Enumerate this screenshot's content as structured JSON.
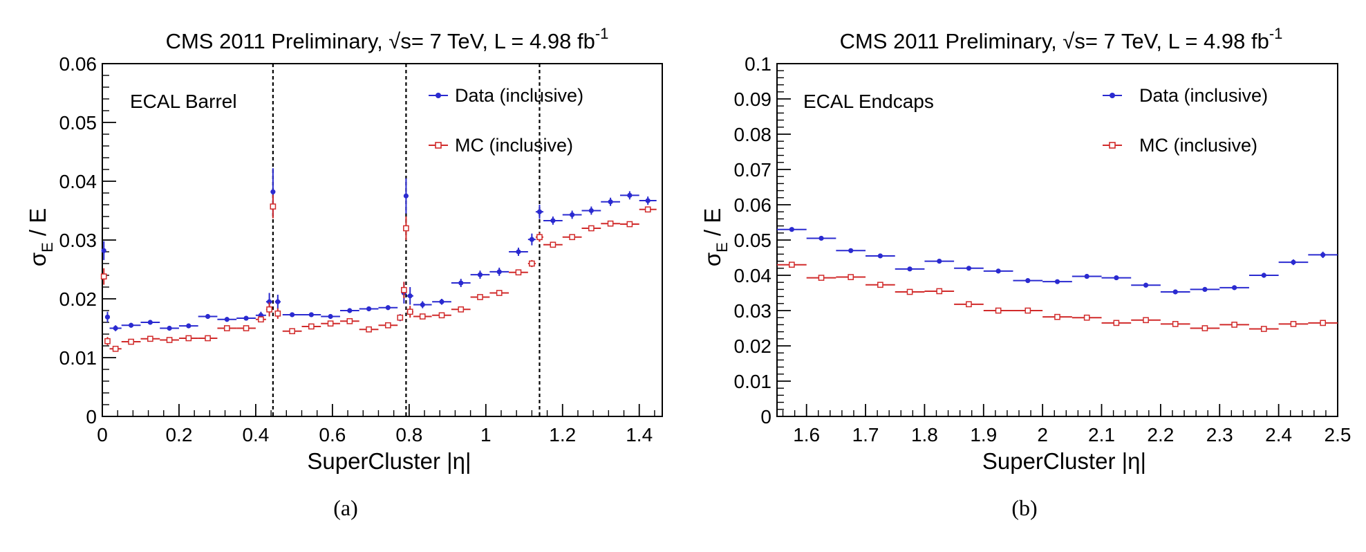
{
  "chart_data": [
    {
      "type": "scatter",
      "panel_caption": "(a)",
      "title": "CMS 2011 Preliminary, √s= 7 TeV, L = 4.98 fb",
      "title_superscript": "-1",
      "region_label": "ECAL Barrel",
      "xlabel": "SuperCluster |η|",
      "ylabel_main": "σ",
      "ylabel_sub": "E",
      "ylabel_rest": " / E",
      "xlim": [
        0,
        1.46
      ],
      "ylim": [
        0,
        0.06
      ],
      "xticks": [
        0,
        0.2,
        0.4,
        0.6,
        0.8,
        1,
        1.2,
        1.4
      ],
      "xtick_labels": [
        "0",
        "0.2",
        "0.4",
        "0.6",
        "0.8",
        "1",
        "1.2",
        "1.4"
      ],
      "yticks": [
        0,
        0.01,
        0.02,
        0.03,
        0.04,
        0.05,
        0.06
      ],
      "ytick_labels": [
        "0",
        "0.01",
        "0.02",
        "0.03",
        "0.04",
        "0.05",
        "0.06"
      ],
      "vlines": [
        0.445,
        0.792,
        1.14
      ],
      "legend_position": "top-right",
      "series": [
        {
          "name": "Data (inclusive)",
          "color": "#2a2ad0",
          "marker": "filled-circle",
          "points": [
            {
              "x": 0.004,
              "xw": 0.004,
              "y": 0.0282,
              "e": 0.0016
            },
            {
              "x": 0.0135,
              "xw": 0.0055,
              "y": 0.0169,
              "e": 0.0009
            },
            {
              "x": 0.0345,
              "xw": 0.0155,
              "y": 0.015,
              "e": 0.0005
            },
            {
              "x": 0.075,
              "xw": 0.025,
              "y": 0.0155,
              "e": 0.0004
            },
            {
              "x": 0.125,
              "xw": 0.025,
              "y": 0.016,
              "e": 0.0004
            },
            {
              "x": 0.175,
              "xw": 0.025,
              "y": 0.015,
              "e": 0.0004
            },
            {
              "x": 0.225,
              "xw": 0.025,
              "y": 0.0154,
              "e": 0.0004
            },
            {
              "x": 0.275,
              "xw": 0.025,
              "y": 0.017,
              "e": 0.0004
            },
            {
              "x": 0.325,
              "xw": 0.025,
              "y": 0.0165,
              "e": 0.0004
            },
            {
              "x": 0.375,
              "xw": 0.025,
              "y": 0.0167,
              "e": 0.0004
            },
            {
              "x": 0.4135,
              "xw": 0.0135,
              "y": 0.0172,
              "e": 0.0006
            },
            {
              "x": 0.4355,
              "xw": 0.0085,
              "y": 0.0195,
              "e": 0.0015
            },
            {
              "x": 0.445,
              "xw": 0.0035,
              "y": 0.0382,
              "e": 0.004
            },
            {
              "x": 0.4575,
              "xw": 0.0075,
              "y": 0.0195,
              "e": 0.0012
            },
            {
              "x": 0.495,
              "xw": 0.025,
              "y": 0.0173,
              "e": 0.0004
            },
            {
              "x": 0.545,
              "xw": 0.025,
              "y": 0.0173,
              "e": 0.0004
            },
            {
              "x": 0.595,
              "xw": 0.025,
              "y": 0.017,
              "e": 0.0004
            },
            {
              "x": 0.645,
              "xw": 0.025,
              "y": 0.018,
              "e": 0.0004
            },
            {
              "x": 0.695,
              "xw": 0.025,
              "y": 0.0183,
              "e": 0.0004
            },
            {
              "x": 0.745,
              "xw": 0.025,
              "y": 0.0185,
              "e": 0.0004
            },
            {
              "x": 0.7765,
              "xw": 0.0065,
              "y": 0.0168,
              "e": 0.0006
            },
            {
              "x": 0.7865,
              "xw": 0.0035,
              "y": 0.021,
              "e": 0.0018
            },
            {
              "x": 0.792,
              "xw": 0.002,
              "y": 0.0375,
              "e": 0.003
            },
            {
              "x": 0.8025,
              "xw": 0.0085,
              "y": 0.0205,
              "e": 0.0015
            },
            {
              "x": 0.835,
              "xw": 0.024,
              "y": 0.019,
              "e": 0.0006
            },
            {
              "x": 0.885,
              "xw": 0.025,
              "y": 0.0195,
              "e": 0.0005
            },
            {
              "x": 0.935,
              "xw": 0.025,
              "y": 0.0227,
              "e": 0.0007
            },
            {
              "x": 0.985,
              "xw": 0.025,
              "y": 0.0241,
              "e": 0.0007
            },
            {
              "x": 1.035,
              "xw": 0.025,
              "y": 0.0246,
              "e": 0.0007
            },
            {
              "x": 1.085,
              "xw": 0.025,
              "y": 0.028,
              "e": 0.0007
            },
            {
              "x": 1.12,
              "xw": 0.01,
              "y": 0.0301,
              "e": 0.001
            },
            {
              "x": 1.14,
              "xw": 0.01,
              "y": 0.0348,
              "e": 0.0012
            },
            {
              "x": 1.175,
              "xw": 0.025,
              "y": 0.0333,
              "e": 0.0007
            },
            {
              "x": 1.225,
              "xw": 0.025,
              "y": 0.0343,
              "e": 0.0007
            },
            {
              "x": 1.275,
              "xw": 0.025,
              "y": 0.035,
              "e": 0.0007
            },
            {
              "x": 1.325,
              "xw": 0.025,
              "y": 0.0365,
              "e": 0.0007
            },
            {
              "x": 1.375,
              "xw": 0.025,
              "y": 0.0376,
              "e": 0.0007
            },
            {
              "x": 1.4225,
              "xw": 0.0225,
              "y": 0.0367,
              "e": 0.0007
            }
          ]
        },
        {
          "name": "MC (inclusive)",
          "color": "#d12a2a",
          "marker": "open-square",
          "points": [
            {
              "x": 0.004,
              "xw": 0.004,
              "y": 0.0238,
              "e": 0.0014
            },
            {
              "x": 0.0135,
              "xw": 0.0055,
              "y": 0.0128,
              "e": 0.0007
            },
            {
              "x": 0.0345,
              "xw": 0.0155,
              "y": 0.0115,
              "e": 0.0004
            },
            {
              "x": 0.075,
              "xw": 0.025,
              "y": 0.0127,
              "e": 0.0003
            },
            {
              "x": 0.125,
              "xw": 0.025,
              "y": 0.0132,
              "e": 0.0003
            },
            {
              "x": 0.175,
              "xw": 0.025,
              "y": 0.013,
              "e": 0.0003
            },
            {
              "x": 0.225,
              "xw": 0.025,
              "y": 0.0133,
              "e": 0.0003
            },
            {
              "x": 0.275,
              "xw": 0.025,
              "y": 0.0133,
              "e": 0.0003
            },
            {
              "x": 0.325,
              "xw": 0.025,
              "y": 0.015,
              "e": 0.0003
            },
            {
              "x": 0.375,
              "xw": 0.025,
              "y": 0.015,
              "e": 0.0003
            },
            {
              "x": 0.4135,
              "xw": 0.0135,
              "y": 0.0165,
              "e": 0.0005
            },
            {
              "x": 0.4355,
              "xw": 0.0085,
              "y": 0.0182,
              "e": 0.0012
            },
            {
              "x": 0.445,
              "xw": 0.0035,
              "y": 0.0357,
              "e": 0.002
            },
            {
              "x": 0.4575,
              "xw": 0.0075,
              "y": 0.0175,
              "e": 0.0009
            },
            {
              "x": 0.495,
              "xw": 0.025,
              "y": 0.0145,
              "e": 0.0003
            },
            {
              "x": 0.545,
              "xw": 0.025,
              "y": 0.0153,
              "e": 0.0003
            },
            {
              "x": 0.595,
              "xw": 0.025,
              "y": 0.0158,
              "e": 0.0003
            },
            {
              "x": 0.645,
              "xw": 0.025,
              "y": 0.0162,
              "e": 0.0003
            },
            {
              "x": 0.695,
              "xw": 0.025,
              "y": 0.0148,
              "e": 0.0003
            },
            {
              "x": 0.745,
              "xw": 0.025,
              "y": 0.0155,
              "e": 0.0003
            },
            {
              "x": 0.7765,
              "xw": 0.0065,
              "y": 0.0168,
              "e": 0.0005
            },
            {
              "x": 0.7865,
              "xw": 0.0035,
              "y": 0.0215,
              "e": 0.0014
            },
            {
              "x": 0.792,
              "xw": 0.002,
              "y": 0.032,
              "e": 0.002
            },
            {
              "x": 0.8025,
              "xw": 0.0085,
              "y": 0.0178,
              "e": 0.001
            },
            {
              "x": 0.835,
              "xw": 0.024,
              "y": 0.017,
              "e": 0.0004
            },
            {
              "x": 0.885,
              "xw": 0.025,
              "y": 0.0172,
              "e": 0.0004
            },
            {
              "x": 0.935,
              "xw": 0.025,
              "y": 0.0182,
              "e": 0.0004
            },
            {
              "x": 0.985,
              "xw": 0.025,
              "y": 0.0203,
              "e": 0.0004
            },
            {
              "x": 1.035,
              "xw": 0.025,
              "y": 0.021,
              "e": 0.0004
            },
            {
              "x": 1.085,
              "xw": 0.025,
              "y": 0.0245,
              "e": 0.0004
            },
            {
              "x": 1.12,
              "xw": 0.01,
              "y": 0.026,
              "e": 0.0006
            },
            {
              "x": 1.14,
              "xw": 0.01,
              "y": 0.0305,
              "e": 0.0008
            },
            {
              "x": 1.175,
              "xw": 0.025,
              "y": 0.0292,
              "e": 0.0004
            },
            {
              "x": 1.225,
              "xw": 0.025,
              "y": 0.0305,
              "e": 0.0004
            },
            {
              "x": 1.275,
              "xw": 0.025,
              "y": 0.032,
              "e": 0.0004
            },
            {
              "x": 1.325,
              "xw": 0.025,
              "y": 0.0328,
              "e": 0.0004
            },
            {
              "x": 1.375,
              "xw": 0.025,
              "y": 0.0327,
              "e": 0.0004
            },
            {
              "x": 1.4225,
              "xw": 0.0225,
              "y": 0.0352,
              "e": 0.0005
            }
          ]
        }
      ]
    },
    {
      "type": "scatter",
      "panel_caption": "(b)",
      "title": "CMS 2011 Preliminary, √s= 7 TeV, L = 4.98 fb",
      "title_superscript": "-1",
      "region_label": "ECAL Endcaps",
      "xlabel": "SuperCluster |η|",
      "ylabel_main": "σ",
      "ylabel_sub": "E",
      "ylabel_rest": " / E",
      "xlim": [
        1.55,
        2.5
      ],
      "ylim": [
        0,
        0.1
      ],
      "xticks": [
        1.6,
        1.7,
        1.8,
        1.9,
        2,
        2.1,
        2.2,
        2.3,
        2.4,
        2.5
      ],
      "xtick_labels": [
        "1.6",
        "1.7",
        "1.8",
        "1.9",
        "2",
        "2.1",
        "2.2",
        "2.3",
        "2.4",
        "2.5"
      ],
      "yticks": [
        0,
        0.01,
        0.02,
        0.03,
        0.04,
        0.05,
        0.06,
        0.07,
        0.08,
        0.09,
        0.1
      ],
      "ytick_labels": [
        "0",
        "0.01",
        "0.02",
        "0.03",
        "0.04",
        "0.05",
        "0.06",
        "0.07",
        "0.08",
        "0.09",
        "0.1"
      ],
      "vlines": [],
      "legend_position": "top-right",
      "series": [
        {
          "name": "Data (inclusive)",
          "color": "#2a2ad0",
          "marker": "filled-circle",
          "points": [
            {
              "x": 1.575,
              "xw": 0.025,
              "y": 0.053,
              "e": 0.0006
            },
            {
              "x": 1.625,
              "xw": 0.025,
              "y": 0.0505,
              "e": 0.0006
            },
            {
              "x": 1.675,
              "xw": 0.025,
              "y": 0.047,
              "e": 0.0006
            },
            {
              "x": 1.725,
              "xw": 0.025,
              "y": 0.0455,
              "e": 0.0006
            },
            {
              "x": 1.775,
              "xw": 0.025,
              "y": 0.0418,
              "e": 0.0006
            },
            {
              "x": 1.825,
              "xw": 0.025,
              "y": 0.044,
              "e": 0.0006
            },
            {
              "x": 1.875,
              "xw": 0.025,
              "y": 0.042,
              "e": 0.0006
            },
            {
              "x": 1.925,
              "xw": 0.025,
              "y": 0.0412,
              "e": 0.0006
            },
            {
              "x": 1.975,
              "xw": 0.025,
              "y": 0.0385,
              "e": 0.0006
            },
            {
              "x": 2.025,
              "xw": 0.025,
              "y": 0.0382,
              "e": 0.0006
            },
            {
              "x": 2.075,
              "xw": 0.025,
              "y": 0.0397,
              "e": 0.0006
            },
            {
              "x": 2.125,
              "xw": 0.025,
              "y": 0.0393,
              "e": 0.0006
            },
            {
              "x": 2.175,
              "xw": 0.025,
              "y": 0.0372,
              "e": 0.0006
            },
            {
              "x": 2.225,
              "xw": 0.025,
              "y": 0.0353,
              "e": 0.0006
            },
            {
              "x": 2.275,
              "xw": 0.025,
              "y": 0.036,
              "e": 0.0006
            },
            {
              "x": 2.325,
              "xw": 0.025,
              "y": 0.0365,
              "e": 0.0006
            },
            {
              "x": 2.375,
              "xw": 0.025,
              "y": 0.04,
              "e": 0.0007
            },
            {
              "x": 2.425,
              "xw": 0.025,
              "y": 0.0437,
              "e": 0.0008
            },
            {
              "x": 2.475,
              "xw": 0.025,
              "y": 0.0458,
              "e": 0.0009
            }
          ]
        },
        {
          "name": "MC (inclusive)",
          "color": "#d12a2a",
          "marker": "open-square",
          "points": [
            {
              "x": 1.575,
              "xw": 0.025,
              "y": 0.043,
              "e": 0.0005
            },
            {
              "x": 1.625,
              "xw": 0.025,
              "y": 0.0393,
              "e": 0.0005
            },
            {
              "x": 1.675,
              "xw": 0.025,
              "y": 0.0395,
              "e": 0.0005
            },
            {
              "x": 1.725,
              "xw": 0.025,
              "y": 0.0373,
              "e": 0.0005
            },
            {
              "x": 1.775,
              "xw": 0.025,
              "y": 0.0353,
              "e": 0.0005
            },
            {
              "x": 1.825,
              "xw": 0.025,
              "y": 0.0355,
              "e": 0.0005
            },
            {
              "x": 1.875,
              "xw": 0.025,
              "y": 0.0318,
              "e": 0.0005
            },
            {
              "x": 1.925,
              "xw": 0.025,
              "y": 0.03,
              "e": 0.0005
            },
            {
              "x": 1.975,
              "xw": 0.025,
              "y": 0.03,
              "e": 0.0005
            },
            {
              "x": 2.025,
              "xw": 0.025,
              "y": 0.0282,
              "e": 0.0005
            },
            {
              "x": 2.075,
              "xw": 0.025,
              "y": 0.028,
              "e": 0.0005
            },
            {
              "x": 2.125,
              "xw": 0.025,
              "y": 0.0265,
              "e": 0.0005
            },
            {
              "x": 2.175,
              "xw": 0.025,
              "y": 0.0273,
              "e": 0.0005
            },
            {
              "x": 2.225,
              "xw": 0.025,
              "y": 0.0262,
              "e": 0.0005
            },
            {
              "x": 2.275,
              "xw": 0.025,
              "y": 0.025,
              "e": 0.0005
            },
            {
              "x": 2.325,
              "xw": 0.025,
              "y": 0.026,
              "e": 0.0006
            },
            {
              "x": 2.375,
              "xw": 0.025,
              "y": 0.0248,
              "e": 0.0006
            },
            {
              "x": 2.425,
              "xw": 0.025,
              "y": 0.0262,
              "e": 0.0007
            },
            {
              "x": 2.475,
              "xw": 0.025,
              "y": 0.0265,
              "e": 0.0008
            }
          ]
        }
      ]
    }
  ]
}
